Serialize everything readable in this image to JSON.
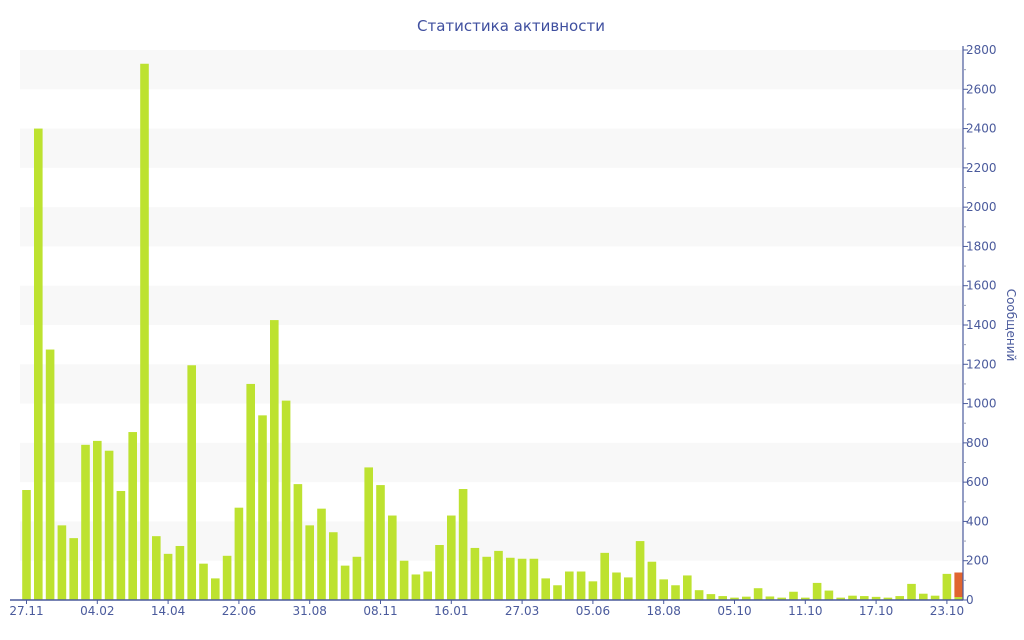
{
  "chart_data": {
    "type": "bar",
    "stacked": true,
    "title": "Статистика активности",
    "ylabel": "Сообщений",
    "xlabel": "",
    "ylim": [
      0,
      2800
    ],
    "y_ticks": [
      0,
      200,
      400,
      600,
      800,
      1000,
      1200,
      1400,
      1600,
      1800,
      2000,
      2200,
      2400,
      2600,
      2800
    ],
    "y_axis_position": "right",
    "grid": "alternating horizontal bands",
    "x_tick_labels": [
      "27.11",
      "04.02",
      "14.04",
      "22.06",
      "31.08",
      "08.11",
      "16.01",
      "27.03",
      "05.06",
      "18.08",
      "05.10",
      "11.10",
      "17.10",
      "23.10"
    ],
    "x_tick_every": 6,
    "series": [
      {
        "color": "#bde230",
        "values": [
          560,
          2400,
          1275,
          380,
          315,
          790,
          810,
          760,
          555,
          855,
          2730,
          325,
          235,
          275,
          1195,
          185,
          110,
          225,
          470,
          1100,
          940,
          1425,
          1015,
          590,
          380,
          465,
          345,
          175,
          220,
          675,
          585,
          430,
          200,
          130,
          145,
          280,
          430,
          565,
          265,
          220,
          250,
          215,
          210,
          210,
          110,
          75,
          145,
          145,
          95,
          240,
          140,
          115,
          300,
          195,
          105,
          75,
          125,
          50,
          30,
          20,
          12,
          17,
          60,
          18,
          12,
          42,
          12,
          87,
          48,
          12,
          22,
          20,
          16,
          12,
          20,
          82,
          32,
          22,
          133,
          15
        ]
      },
      {
        "color": "#e06530",
        "values": [
          0,
          0,
          0,
          0,
          0,
          0,
          0,
          0,
          0,
          0,
          0,
          0,
          0,
          0,
          0,
          0,
          0,
          0,
          0,
          0,
          0,
          0,
          0,
          0,
          0,
          0,
          0,
          0,
          0,
          0,
          0,
          0,
          0,
          0,
          0,
          0,
          0,
          0,
          0,
          0,
          0,
          0,
          0,
          0,
          0,
          0,
          0,
          0,
          0,
          0,
          0,
          0,
          0,
          0,
          0,
          0,
          0,
          0,
          0,
          0,
          0,
          0,
          0,
          0,
          0,
          0,
          0,
          0,
          0,
          0,
          0,
          0,
          0,
          0,
          0,
          0,
          0,
          0,
          0,
          125
        ]
      }
    ]
  },
  "colors": {
    "axis": "#4a5a9c",
    "title": "#3f4f9f",
    "band": "#f8f8f8"
  }
}
